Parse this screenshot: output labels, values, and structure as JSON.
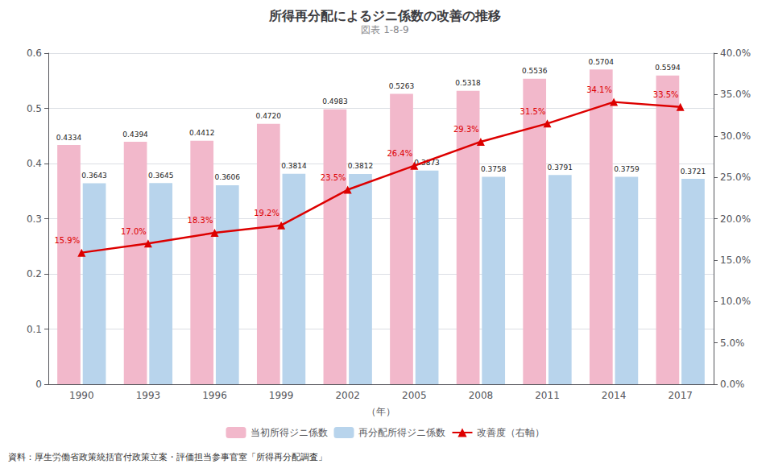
{
  "chart_data": {
    "type": "bar",
    "title": "所得再分配によるジニ係数の改善の推移",
    "subtitle": "図表 1-8-9",
    "annotations": [
      "資料：厚生労働省政策統括官付政策立案・評価担当参事官室「所得再分配調査」"
    ],
    "xlabel": "（年）",
    "categories": [
      "1990",
      "1993",
      "1996",
      "1999",
      "2002",
      "2005",
      "2008",
      "2011",
      "2014",
      "2017"
    ],
    "series": [
      {
        "name": "当初所得ジニ係数",
        "type": "bar",
        "color": "#f2b8cb",
        "values": [
          0.4334,
          0.4394,
          0.4412,
          0.472,
          0.4983,
          0.5263,
          0.5318,
          0.5536,
          0.5704,
          0.5594
        ],
        "value_labels": [
          "0.4334",
          "0.4394",
          "0.4412",
          "0.4720",
          "0.4983",
          "0.5263",
          "0.5318",
          "0.5536",
          "0.5704",
          "0.5594"
        ]
      },
      {
        "name": "再分配所得ジニ係数",
        "type": "bar",
        "color": "#b8d4ec",
        "values": [
          0.3643,
          0.3645,
          0.3606,
          0.3814,
          0.3812,
          0.3873,
          0.3758,
          0.3791,
          0.3759,
          0.3721
        ],
        "value_labels": [
          "0.3643",
          "0.3645",
          "0.3606",
          "0.3814",
          "0.3812",
          "0.3873",
          "0.3758",
          "0.3791",
          "0.3759",
          "0.3721"
        ]
      },
      {
        "name": "改善度（右軸）",
        "type": "line",
        "axis": "y2",
        "color": "#dd0000",
        "marker": "triangle",
        "values": [
          0.159,
          0.17,
          0.183,
          0.192,
          0.235,
          0.264,
          0.293,
          0.315,
          0.341,
          0.335
        ],
        "value_labels": [
          "15.9%",
          "17.0%",
          "18.3%",
          "19.2%",
          "23.5%",
          "26.4%",
          "29.3%",
          "31.5%",
          "34.1%",
          "33.5%"
        ]
      }
    ],
    "ylim": [
      0,
      0.6
    ],
    "yticks": [
      0,
      0.1,
      0.2,
      0.3,
      0.4,
      0.5,
      0.6
    ],
    "y2lim": [
      0.0,
      0.4
    ],
    "y2ticks": [
      {
        "value": 0.0,
        "label": "0.0%"
      },
      {
        "value": 0.05,
        "label": "5.0%"
      },
      {
        "value": 0.1,
        "label": "10.0%"
      },
      {
        "value": 0.15,
        "label": "15.0%"
      },
      {
        "value": 0.2,
        "label": "20.0%"
      },
      {
        "value": 0.25,
        "label": "25.0%"
      },
      {
        "value": 0.3,
        "label": "30.0%"
      },
      {
        "value": 0.35,
        "label": "35.0%"
      },
      {
        "value": 0.4,
        "label": "40.0%"
      }
    ],
    "grid": true,
    "legend": "bottom",
    "data_labels": true
  }
}
